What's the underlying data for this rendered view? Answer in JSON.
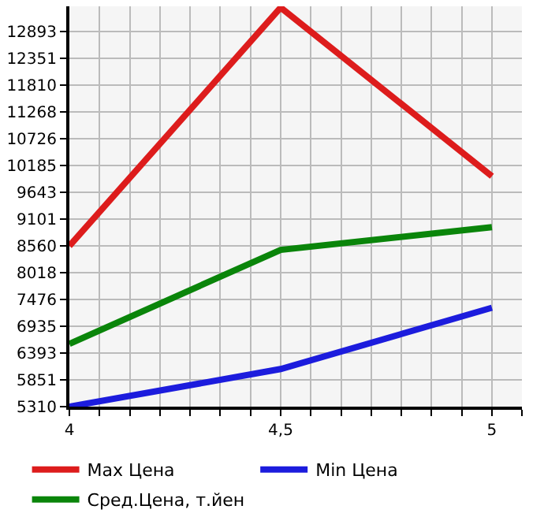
{
  "chart_data": {
    "type": "line",
    "x": [
      4,
      4.5,
      5
    ],
    "series": [
      {
        "name": "Max Цена",
        "color": "#dd1c1c",
        "values": [
          8560,
          13380,
          9970
        ]
      },
      {
        "name": "Min Цена",
        "color": "#1c1cdd",
        "values": [
          5310,
          6070,
          7310
        ]
      },
      {
        "name": "Сред.Цена, т.йен",
        "color": "#0a850a",
        "values": [
          6580,
          8480,
          8940
        ]
      }
    ],
    "xlim": [
      4,
      5.071
    ],
    "xticks": [
      4,
      {
        "value": 4.071,
        "label": null
      },
      {
        "value": 4.143,
        "label": null
      },
      {
        "value": 4.214,
        "label": null
      },
      {
        "value": 4.286,
        "label": null
      },
      {
        "value": 4.357,
        "label": null
      },
      {
        "value": 4.429,
        "label": null
      },
      {
        "value": 4.5,
        "label": "4,5"
      },
      {
        "value": 4.571,
        "label": null
      },
      {
        "value": 4.643,
        "label": null
      },
      {
        "value": 4.714,
        "label": null
      },
      {
        "value": 4.786,
        "label": null
      },
      {
        "value": 4.857,
        "label": null
      },
      {
        "value": 4.929,
        "label": null
      },
      5,
      {
        "value": 5.071,
        "label": null
      }
    ],
    "ylim": [
      5310,
      13405
    ],
    "yticks": [
      5310,
      5851,
      6393,
      6935,
      7476,
      8018,
      8560,
      9101,
      9643,
      10185,
      10726,
      11268,
      11810,
      12351,
      12893
    ],
    "grid": true,
    "legend": "bottom",
    "marker": "none",
    "line_style": "solid"
  }
}
